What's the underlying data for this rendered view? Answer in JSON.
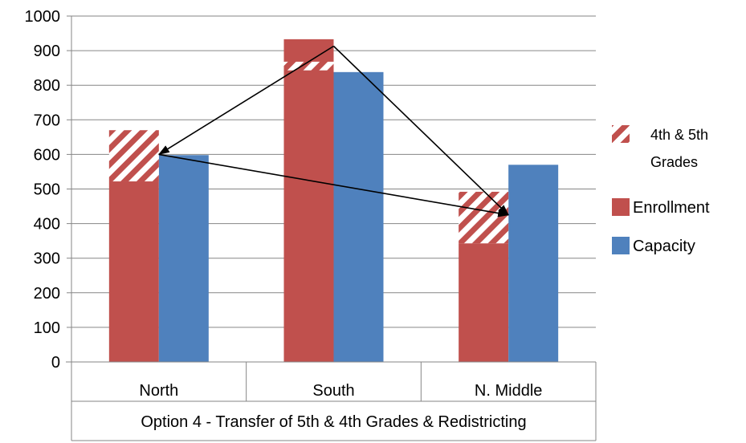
{
  "chart_data": {
    "type": "bar",
    "title": "",
    "xlabel": "Option 4 - Transfer of 5th & 4th Grades & Redistricting",
    "ylabel": "",
    "ylim": [
      0,
      1000
    ],
    "yticks": [
      0,
      100,
      200,
      300,
      400,
      500,
      600,
      700,
      800,
      900,
      1000
    ],
    "grid": true,
    "legend_position": "right",
    "categories": [
      "North",
      "South",
      "N. Middle"
    ],
    "series": [
      {
        "name": "Enrollment",
        "color": "#C0504D",
        "values": [
          522,
          933,
          343
        ]
      },
      {
        "name": "Capacity",
        "color": "#4F81BD",
        "values": [
          598,
          838,
          570
        ]
      }
    ],
    "hatched_overlay": {
      "name": "4th & 5th Grades",
      "color": "#C0504D",
      "pattern": "diagonal-stripes",
      "ranges": [
        {
          "category": "North",
          "from": 522,
          "to": 670
        },
        {
          "category": "South",
          "from": 843,
          "to": 868
        },
        {
          "category": "N. Middle",
          "from": 343,
          "to": 492
        }
      ]
    },
    "arrows": [
      {
        "from": {
          "category": "South",
          "value": 913
        },
        "to": {
          "category": "North",
          "value": 600
        }
      },
      {
        "from": {
          "category": "South",
          "value": 913
        },
        "to": {
          "category": "N. Middle",
          "value": 425
        }
      },
      {
        "from": {
          "category": "North",
          "value": 600
        },
        "to": {
          "category": "N. Middle",
          "value": 425
        }
      }
    ],
    "legend": [
      {
        "label_lines": [
          "4th & 5th",
          "Grades"
        ],
        "kind": "hatched",
        "color": "#C0504D"
      },
      {
        "label_lines": [
          "Enrollment"
        ],
        "kind": "solid",
        "color": "#C0504D"
      },
      {
        "label_lines": [
          "Capacity"
        ],
        "kind": "solid",
        "color": "#4F81BD"
      }
    ]
  }
}
